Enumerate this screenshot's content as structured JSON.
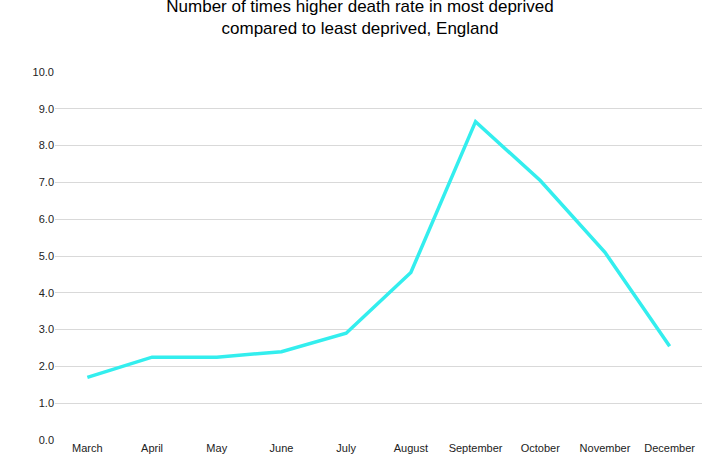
{
  "chart_data": {
    "type": "line",
    "title": "Number of times higher death rate in most deprived compared to least deprived, England",
    "categories": [
      "March",
      "April",
      "May",
      "June",
      "July",
      "August",
      "September",
      "October",
      "November",
      "December"
    ],
    "values": [
      1.7,
      2.25,
      2.25,
      2.4,
      2.9,
      4.55,
      8.65,
      7.05,
      5.1,
      2.55
    ],
    "color": "#33eeee",
    "ylim": [
      0,
      10
    ],
    "yticks": [
      {
        "value": 0,
        "label": "0.0"
      },
      {
        "value": 1,
        "label": "1.0"
      },
      {
        "value": 2,
        "label": "2.0"
      },
      {
        "value": 3,
        "label": "3.0"
      },
      {
        "value": 4,
        "label": "4.0"
      },
      {
        "value": 5,
        "label": "5.0"
      },
      {
        "value": 6,
        "label": "6.0"
      },
      {
        "value": 7,
        "label": "7.0"
      },
      {
        "value": 8,
        "label": "8.0"
      },
      {
        "value": 9,
        "label": "9.0"
      },
      {
        "value": 10,
        "label": "10.0"
      }
    ],
    "grid": true
  }
}
